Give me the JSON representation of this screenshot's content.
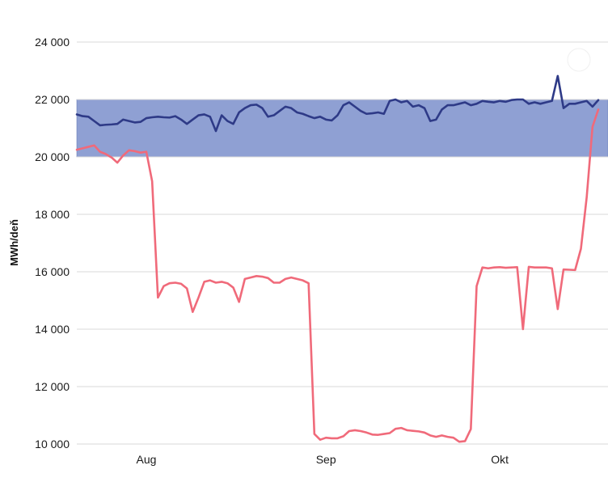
{
  "chart_data": {
    "type": "line",
    "title": "",
    "ylabel": "MWh/deň",
    "ylim": [
      10000,
      24000
    ],
    "y_ticks": [
      10000,
      12000,
      14000,
      16000,
      18000,
      20000,
      22000,
      24000
    ],
    "y_tick_labels": [
      "10 000",
      "12 000",
      "14 000",
      "16 000",
      "18 000",
      "20 000",
      "22 000",
      "24 000"
    ],
    "x_start": "2023-07-20",
    "x_end": "2023-10-18",
    "x_ticks": [
      {
        "date": "2023-08-01",
        "label": "Aug"
      },
      {
        "date": "2023-09-01",
        "label": "Sep"
      },
      {
        "date": "2023-10-01",
        "label": "Okt"
      }
    ],
    "band": {
      "from": 20000,
      "to": 22000,
      "color": "#8fa0d3"
    },
    "grid": true,
    "series": [
      {
        "color": "#2e3a87",
        "points": [
          [
            "2023-07-20",
            21480
          ],
          [
            "2023-07-21",
            21420
          ],
          [
            "2023-07-22",
            21400
          ],
          [
            "2023-07-23",
            21250
          ],
          [
            "2023-07-24",
            21100
          ],
          [
            "2023-07-25",
            21120
          ],
          [
            "2023-07-26",
            21130
          ],
          [
            "2023-07-27",
            21150
          ],
          [
            "2023-07-28",
            21300
          ],
          [
            "2023-07-29",
            21250
          ],
          [
            "2023-07-30",
            21200
          ],
          [
            "2023-07-31",
            21220
          ],
          [
            "2023-08-01",
            21350
          ],
          [
            "2023-08-02",
            21380
          ],
          [
            "2023-08-03",
            21400
          ],
          [
            "2023-08-04",
            21380
          ],
          [
            "2023-08-05",
            21370
          ],
          [
            "2023-08-06",
            21420
          ],
          [
            "2023-08-07",
            21300
          ],
          [
            "2023-08-08",
            21150
          ],
          [
            "2023-08-09",
            21300
          ],
          [
            "2023-08-10",
            21450
          ],
          [
            "2023-08-11",
            21480
          ],
          [
            "2023-08-12",
            21400
          ],
          [
            "2023-08-13",
            20900
          ],
          [
            "2023-08-14",
            21450
          ],
          [
            "2023-08-15",
            21250
          ],
          [
            "2023-08-16",
            21150
          ],
          [
            "2023-08-17",
            21550
          ],
          [
            "2023-08-18",
            21700
          ],
          [
            "2023-08-19",
            21800
          ],
          [
            "2023-08-20",
            21820
          ],
          [
            "2023-08-21",
            21700
          ],
          [
            "2023-08-22",
            21400
          ],
          [
            "2023-08-23",
            21450
          ],
          [
            "2023-08-24",
            21600
          ],
          [
            "2023-08-25",
            21750
          ],
          [
            "2023-08-26",
            21700
          ],
          [
            "2023-08-27",
            21550
          ],
          [
            "2023-08-28",
            21500
          ],
          [
            "2023-08-29",
            21420
          ],
          [
            "2023-08-30",
            21350
          ],
          [
            "2023-08-31",
            21400
          ],
          [
            "2023-09-01",
            21300
          ],
          [
            "2023-09-02",
            21270
          ],
          [
            "2023-09-03",
            21450
          ],
          [
            "2023-09-04",
            21800
          ],
          [
            "2023-09-05",
            21900
          ],
          [
            "2023-09-06",
            21750
          ],
          [
            "2023-09-07",
            21600
          ],
          [
            "2023-09-08",
            21500
          ],
          [
            "2023-09-09",
            21520
          ],
          [
            "2023-09-10",
            21550
          ],
          [
            "2023-09-11",
            21500
          ],
          [
            "2023-09-12",
            21950
          ],
          [
            "2023-09-13",
            22000
          ],
          [
            "2023-09-14",
            21900
          ],
          [
            "2023-09-15",
            21950
          ],
          [
            "2023-09-16",
            21750
          ],
          [
            "2023-09-17",
            21800
          ],
          [
            "2023-09-18",
            21700
          ],
          [
            "2023-09-19",
            21250
          ],
          [
            "2023-09-20",
            21300
          ],
          [
            "2023-09-21",
            21650
          ],
          [
            "2023-09-22",
            21800
          ],
          [
            "2023-09-23",
            21800
          ],
          [
            "2023-09-24",
            21850
          ],
          [
            "2023-09-25",
            21900
          ],
          [
            "2023-09-26",
            21800
          ],
          [
            "2023-09-27",
            21850
          ],
          [
            "2023-09-28",
            21950
          ],
          [
            "2023-09-29",
            21920
          ],
          [
            "2023-09-30",
            21900
          ],
          [
            "2023-10-01",
            21950
          ],
          [
            "2023-10-02",
            21920
          ],
          [
            "2023-10-03",
            21980
          ],
          [
            "2023-10-04",
            22000
          ],
          [
            "2023-10-05",
            22000
          ],
          [
            "2023-10-06",
            21850
          ],
          [
            "2023-10-07",
            21900
          ],
          [
            "2023-10-08",
            21850
          ],
          [
            "2023-10-09",
            21900
          ],
          [
            "2023-10-10",
            21950
          ],
          [
            "2023-10-11",
            22820
          ],
          [
            "2023-10-12",
            21700
          ],
          [
            "2023-10-13",
            21850
          ],
          [
            "2023-10-14",
            21850
          ],
          [
            "2023-10-15",
            21900
          ],
          [
            "2023-10-16",
            21950
          ],
          [
            "2023-10-17",
            21750
          ],
          [
            "2023-10-18",
            21980
          ]
        ]
      },
      {
        "color": "#f06a7a",
        "points": [
          [
            "2023-07-20",
            20250
          ],
          [
            "2023-07-21",
            20300
          ],
          [
            "2023-07-22",
            20350
          ],
          [
            "2023-07-23",
            20400
          ],
          [
            "2023-07-24",
            20180
          ],
          [
            "2023-07-25",
            20100
          ],
          [
            "2023-07-26",
            19980
          ],
          [
            "2023-07-27",
            19800
          ],
          [
            "2023-07-28",
            20050
          ],
          [
            "2023-07-29",
            20230
          ],
          [
            "2023-07-30",
            20200
          ],
          [
            "2023-07-31",
            20150
          ],
          [
            "2023-08-01",
            20180
          ],
          [
            "2023-08-02",
            19150
          ],
          [
            "2023-08-03",
            15100
          ],
          [
            "2023-08-04",
            15500
          ],
          [
            "2023-08-05",
            15600
          ],
          [
            "2023-08-06",
            15620
          ],
          [
            "2023-08-07",
            15580
          ],
          [
            "2023-08-08",
            15420
          ],
          [
            "2023-08-09",
            14600
          ],
          [
            "2023-08-10",
            15100
          ],
          [
            "2023-08-11",
            15650
          ],
          [
            "2023-08-12",
            15700
          ],
          [
            "2023-08-13",
            15620
          ],
          [
            "2023-08-14",
            15650
          ],
          [
            "2023-08-15",
            15600
          ],
          [
            "2023-08-16",
            15450
          ],
          [
            "2023-08-17",
            14950
          ],
          [
            "2023-08-18",
            15750
          ],
          [
            "2023-08-19",
            15800
          ],
          [
            "2023-08-20",
            15850
          ],
          [
            "2023-08-21",
            15830
          ],
          [
            "2023-08-22",
            15780
          ],
          [
            "2023-08-23",
            15620
          ],
          [
            "2023-08-24",
            15620
          ],
          [
            "2023-08-25",
            15750
          ],
          [
            "2023-08-26",
            15800
          ],
          [
            "2023-08-27",
            15750
          ],
          [
            "2023-08-28",
            15700
          ],
          [
            "2023-08-29",
            15600
          ],
          [
            "2023-08-30",
            10350
          ],
          [
            "2023-08-31",
            10150
          ],
          [
            "2023-09-01",
            10220
          ],
          [
            "2023-09-02",
            10200
          ],
          [
            "2023-09-03",
            10200
          ],
          [
            "2023-09-04",
            10270
          ],
          [
            "2023-09-05",
            10450
          ],
          [
            "2023-09-06",
            10480
          ],
          [
            "2023-09-07",
            10450
          ],
          [
            "2023-09-08",
            10400
          ],
          [
            "2023-09-09",
            10330
          ],
          [
            "2023-09-10",
            10320
          ],
          [
            "2023-09-11",
            10350
          ],
          [
            "2023-09-12",
            10380
          ],
          [
            "2023-09-13",
            10530
          ],
          [
            "2023-09-14",
            10560
          ],
          [
            "2023-09-15",
            10480
          ],
          [
            "2023-09-16",
            10460
          ],
          [
            "2023-09-17",
            10440
          ],
          [
            "2023-09-18",
            10400
          ],
          [
            "2023-09-19",
            10300
          ],
          [
            "2023-09-20",
            10250
          ],
          [
            "2023-09-21",
            10300
          ],
          [
            "2023-09-22",
            10250
          ],
          [
            "2023-09-23",
            10220
          ],
          [
            "2023-09-24",
            10080
          ],
          [
            "2023-09-25",
            10100
          ],
          [
            "2023-09-26",
            10520
          ],
          [
            "2023-09-27",
            15500
          ],
          [
            "2023-09-28",
            16150
          ],
          [
            "2023-09-29",
            16120
          ],
          [
            "2023-09-30",
            16150
          ],
          [
            "2023-10-01",
            16160
          ],
          [
            "2023-10-02",
            16140
          ],
          [
            "2023-10-03",
            16150
          ],
          [
            "2023-10-04",
            16160
          ],
          [
            "2023-10-05",
            14000
          ],
          [
            "2023-10-06",
            16170
          ],
          [
            "2023-10-07",
            16150
          ],
          [
            "2023-10-08",
            16150
          ],
          [
            "2023-10-09",
            16150
          ],
          [
            "2023-10-10",
            16120
          ],
          [
            "2023-10-11",
            14700
          ],
          [
            "2023-10-12",
            16080
          ],
          [
            "2023-10-13",
            16070
          ],
          [
            "2023-10-14",
            16060
          ],
          [
            "2023-10-15",
            16800
          ],
          [
            "2023-10-16",
            18600
          ],
          [
            "2023-10-17",
            21050
          ],
          [
            "2023-10-18",
            21650
          ]
        ]
      }
    ]
  }
}
